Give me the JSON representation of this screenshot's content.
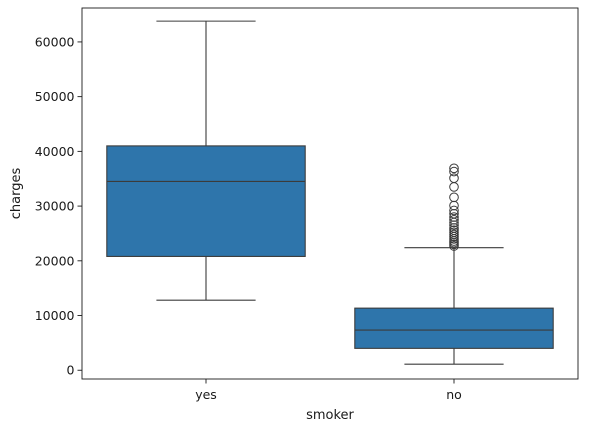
{
  "chart_data": {
    "type": "box",
    "title": "",
    "xlabel": "smoker",
    "ylabel": "charges",
    "categories": [
      "yes",
      "no"
    ],
    "ylim": [
      -1600,
      66200
    ],
    "yticks": [
      0,
      10000,
      20000,
      30000,
      40000,
      50000,
      60000
    ],
    "ytick_labels": [
      "0",
      "10000",
      "20000",
      "30000",
      "40000",
      "50000",
      "60000"
    ],
    "grid": false,
    "box_color": "#2e75ab",
    "line_color": "#3b3b3b",
    "boxes": [
      {
        "category": "yes",
        "whisker_low": 12800,
        "q1": 20800,
        "median": 34500,
        "q3": 41000,
        "whisker_high": 63800,
        "outliers": []
      },
      {
        "category": "no",
        "whisker_low": 1100,
        "q1": 4000,
        "median": 7350,
        "q3": 11350,
        "whisker_high": 22400,
        "outliers": [
          22700,
          23000,
          23300,
          23600,
          24000,
          24400,
          24800,
          25200,
          25600,
          26000,
          26500,
          27000,
          27500,
          28000,
          28600,
          29200,
          30100,
          31600,
          33500,
          35100,
          36300,
          36900
        ]
      }
    ]
  }
}
